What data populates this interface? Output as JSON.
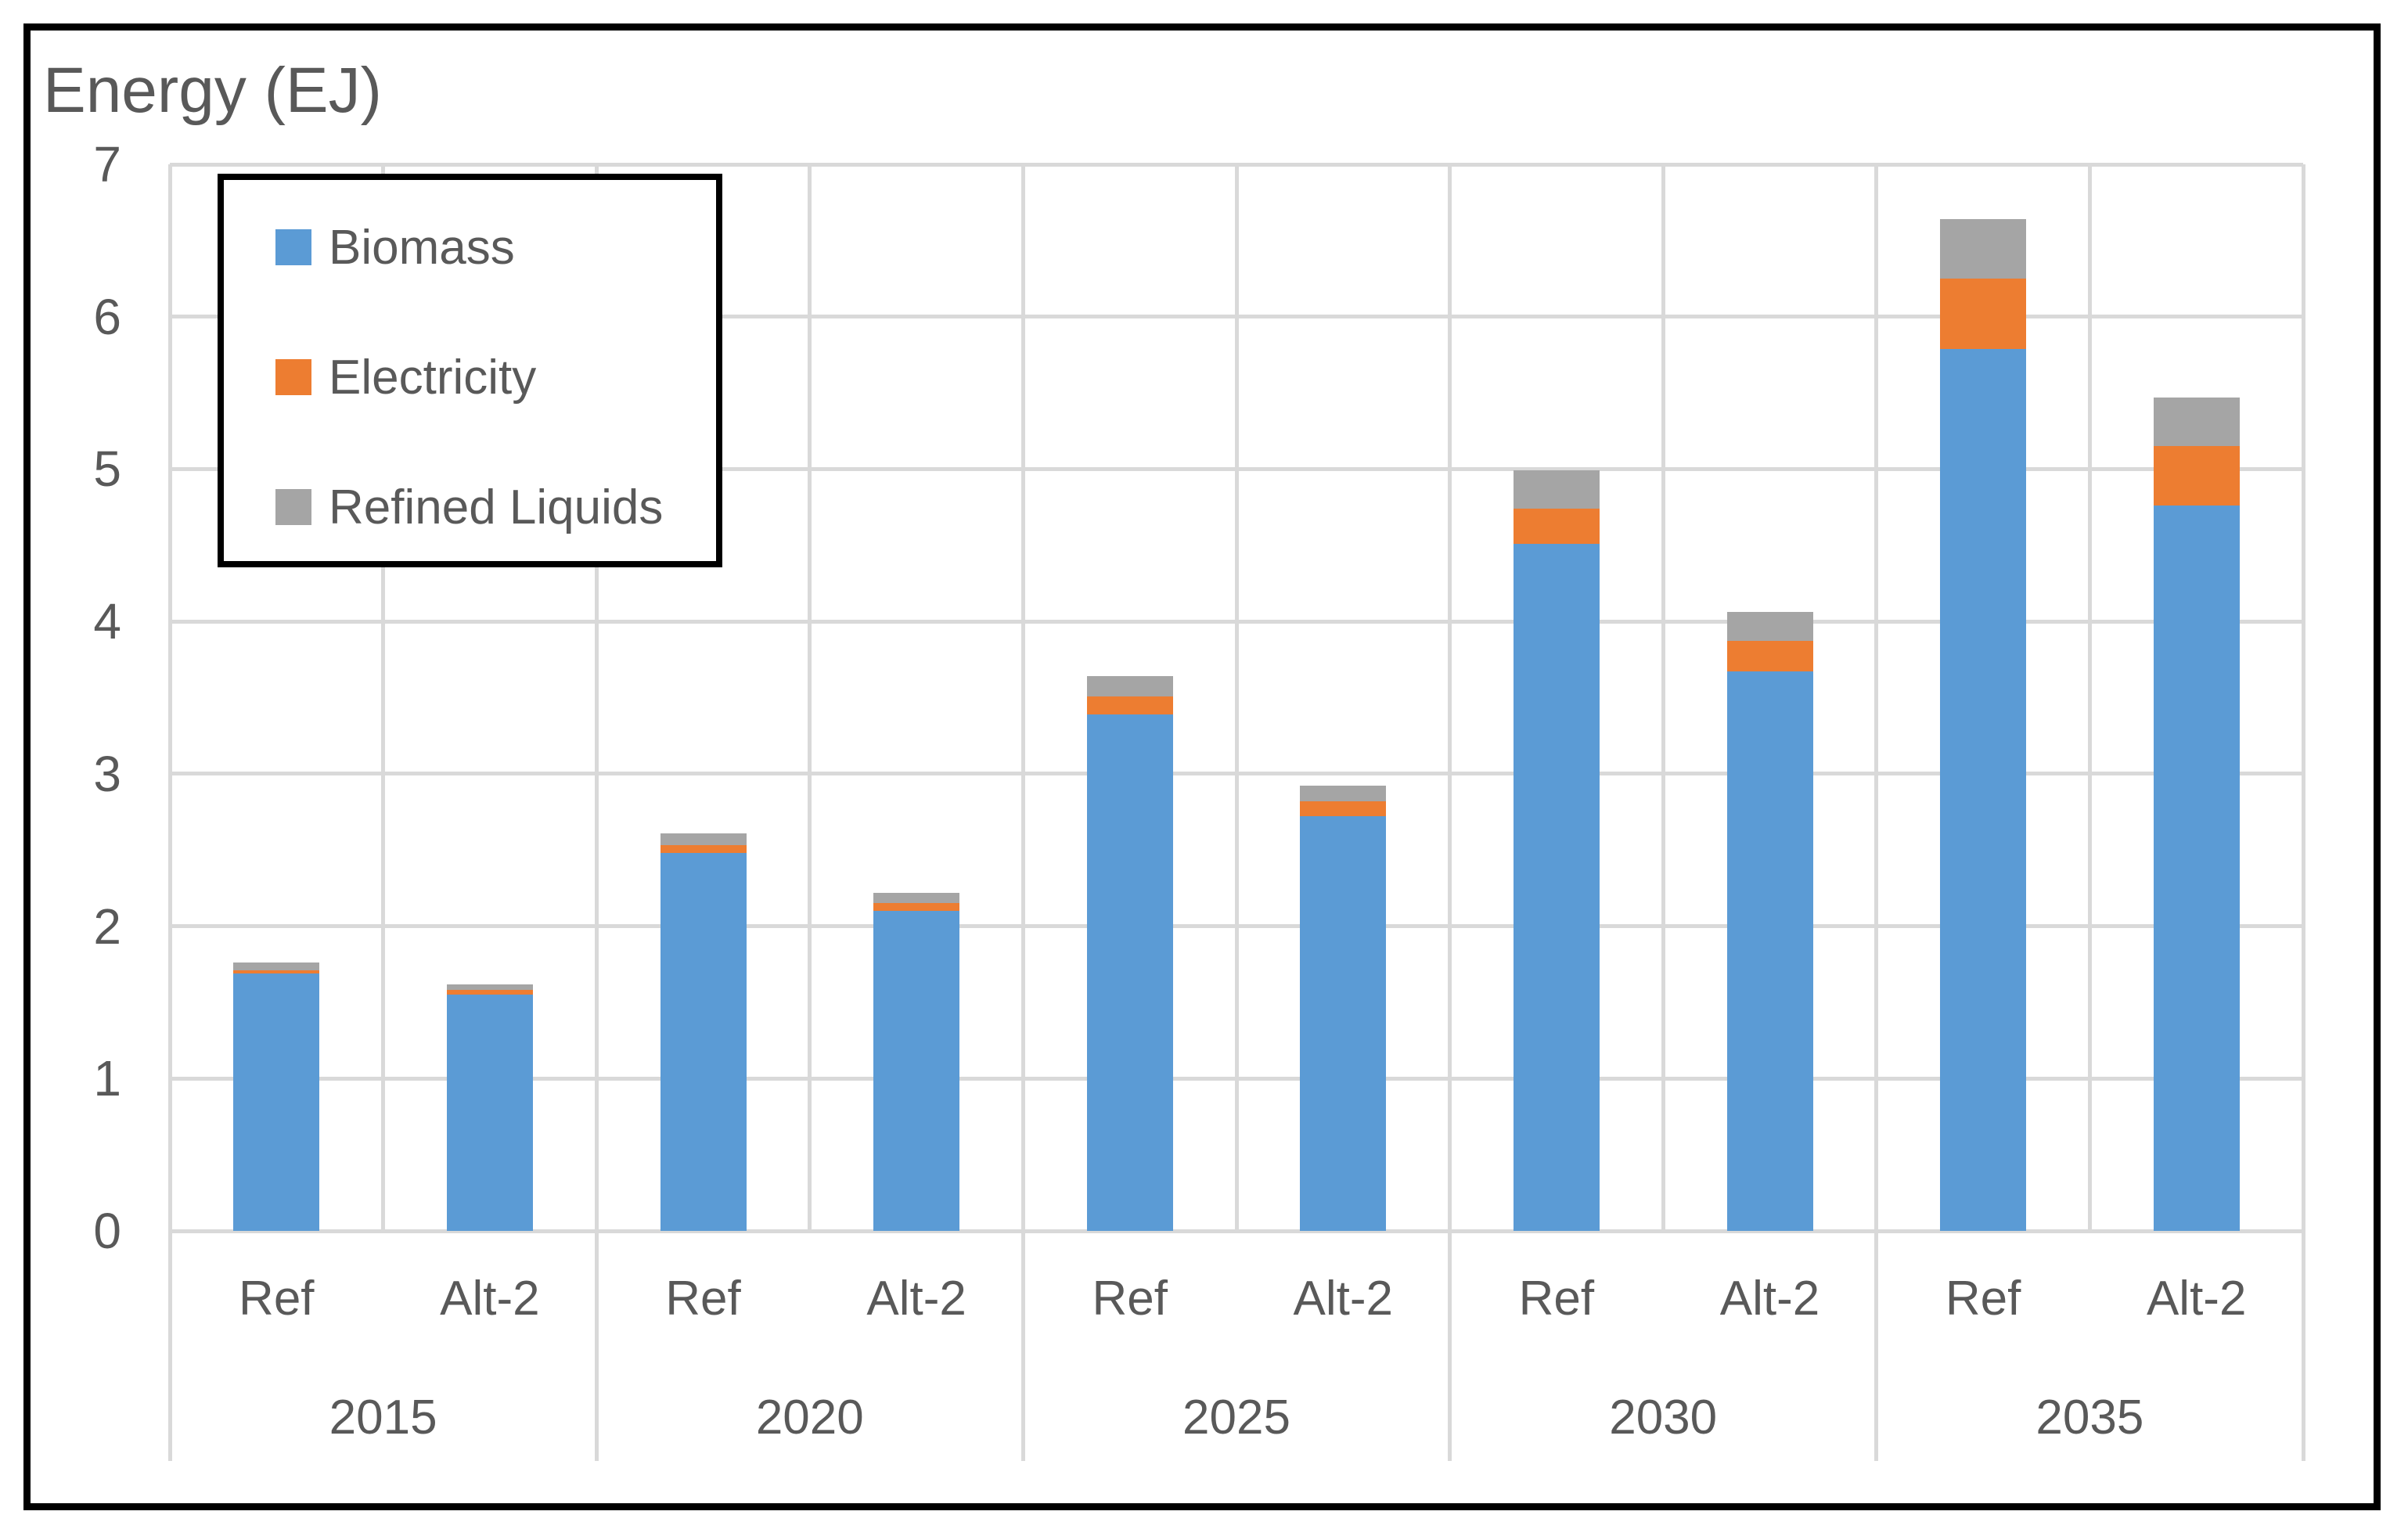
{
  "title": "Energy (EJ)",
  "legend": {
    "items": [
      {
        "label": "Biomass",
        "color": "#5B9BD5"
      },
      {
        "label": "Electricity",
        "color": "#ED7D31"
      },
      {
        "label": "Refined Liquids",
        "color": "#A5A5A5"
      }
    ]
  },
  "y_axis": {
    "tick_labels": [
      "0",
      "1",
      "2",
      "3",
      "4",
      "5",
      "6",
      "7"
    ],
    "min": 0,
    "max": 7
  },
  "x_axis": {
    "groups": [
      {
        "year": "2015",
        "categories": [
          "Ref",
          "Alt-2"
        ]
      },
      {
        "year": "2020",
        "categories": [
          "Ref",
          "Alt-2"
        ]
      },
      {
        "year": "2025",
        "categories": [
          "Ref",
          "Alt-2"
        ]
      },
      {
        "year": "2030",
        "categories": [
          "Ref",
          "Alt-2"
        ]
      },
      {
        "year": "2035",
        "categories": [
          "Ref",
          "Alt-2"
        ]
      }
    ]
  },
  "chart_data": {
    "type": "bar",
    "stacked": true,
    "title": "Energy (EJ)",
    "xlabel": "",
    "ylabel": "Energy (EJ)",
    "ylim": [
      0,
      7
    ],
    "grid": true,
    "legend_position": "upper-left",
    "categories": [
      "2015 Ref",
      "2015 Alt-2",
      "2020 Ref",
      "2020 Alt-2",
      "2025 Ref",
      "2025 Alt-2",
      "2030 Ref",
      "2030 Alt-2",
      "2035 Ref",
      "2035 Alt-2"
    ],
    "series": [
      {
        "name": "Biomass",
        "color": "#5B9BD5",
        "values": [
          1.69,
          1.55,
          2.48,
          2.1,
          3.39,
          2.72,
          4.51,
          3.67,
          5.79,
          4.76
        ]
      },
      {
        "name": "Electricity",
        "color": "#ED7D31",
        "values": [
          0.02,
          0.03,
          0.05,
          0.05,
          0.12,
          0.1,
          0.23,
          0.2,
          0.46,
          0.39
        ]
      },
      {
        "name": "Refined Liquids",
        "color": "#A5A5A5",
        "values": [
          0.05,
          0.04,
          0.08,
          0.07,
          0.13,
          0.1,
          0.25,
          0.19,
          0.39,
          0.32
        ]
      }
    ]
  },
  "colors": {
    "gridline": "#D9D9D9",
    "text": "#595959",
    "frame": "#000000",
    "background": "#FFFFFF"
  }
}
